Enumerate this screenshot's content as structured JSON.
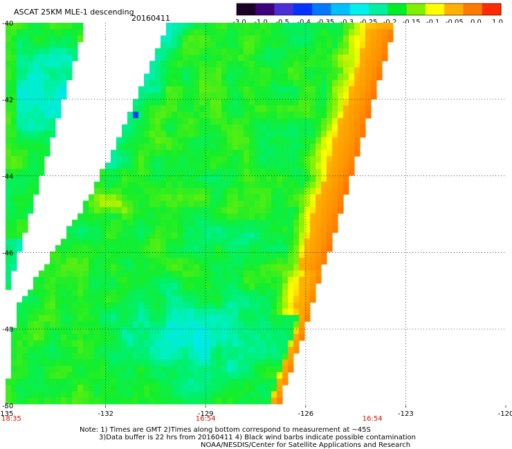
{
  "header": {
    "title": "ASCAT 25KM MLE-1 descending",
    "date": "20160411"
  },
  "colorbar": {
    "labels": [
      "-3.0",
      "-1.0",
      "-0.5",
      "-0.4",
      "-0.35",
      "-0.3",
      "-0.25",
      "-0.2",
      "-0.15",
      "-0.1",
      "-0.05",
      "0.0",
      "1.0"
    ],
    "stops": [
      "#1a0026",
      "#3f007d",
      "#4b2fd6",
      "#0033ff",
      "#0078ff",
      "#00c0ff",
      "#00f0ee",
      "#00f0a0",
      "#00ee2a",
      "#7ff000",
      "#ffff00",
      "#ffb000",
      "#ff7a00",
      "#ff2a00"
    ]
  },
  "chart_data": {
    "type": "heatmap",
    "title": "ASCAT 25KM MLE-1 descending",
    "xlabel": "",
    "ylabel": "",
    "xlim": [
      -135,
      -120
    ],
    "ylim": [
      -50,
      -40
    ],
    "x_ticks": [
      "-135",
      "-132",
      "-129",
      "-126",
      "-123",
      "-120"
    ],
    "x_tick_values": [
      -135,
      -132,
      -129,
      -126,
      -123,
      -120
    ],
    "y_ticks": [
      "-40",
      "-42",
      "-44",
      "-46",
      "-48",
      "-50"
    ],
    "y_tick_values": [
      -40,
      -42,
      -44,
      -46,
      -48,
      -50
    ],
    "grid": true,
    "time_labels": [
      {
        "lon": -135,
        "text": "18:35"
      },
      {
        "lon": -129,
        "text": "16:54"
      },
      {
        "lon": -124,
        "text": "16:54"
      }
    ],
    "grid_spacing_deg": 0.166,
    "value_range": [
      -3.0,
      1.0
    ],
    "swaths": [
      {
        "name": "west",
        "west_edge": [
          [
            -135,
            -40
          ],
          [
            -135,
            -50
          ]
        ],
        "east_edge": [
          [
            -132.6,
            -40
          ],
          [
            -134.9,
            -47.0
          ]
        ]
      },
      {
        "name": "east",
        "west_edge": [
          [
            -130.1,
            -40
          ],
          [
            -132.3,
            -44.3
          ],
          [
            -134.7,
            -47.5
          ],
          [
            -135,
            -50
          ]
        ],
        "east_edge": [
          [
            -123.3,
            -40
          ],
          [
            -126.0,
            -48.0
          ],
          [
            -126.8,
            -50
          ]
        ]
      }
    ],
    "value_regions": [
      {
        "desc": "background",
        "value": -0.18
      },
      {
        "desc": "cyan swath SW",
        "lon": -129,
        "lat": -48.5,
        "value": -0.26
      },
      {
        "desc": "cyan west strip",
        "lon": -134.2,
        "lat": -41.8,
        "value": -0.29
      },
      {
        "desc": "yellow along east edge",
        "lon": -125,
        "lat": -44.5,
        "value": -0.07
      },
      {
        "desc": "orange band",
        "lon": -123.5,
        "lat": -42,
        "value": 0.3
      },
      {
        "desc": "blue speck",
        "lon": -131.1,
        "lat": -42.4,
        "value": -0.42
      }
    ]
  },
  "footer": {
    "note_line1": "Note: 1) Times are GMT 2)Times along bottom correspond to measurement at ~45S",
    "note_line2": "3)Data buffer is 22 hrs from 20160411 4) Black wind barbs indicate possible contamination",
    "credit": "NOAA/NESDIS/Center for Satellite Applications and Research"
  }
}
